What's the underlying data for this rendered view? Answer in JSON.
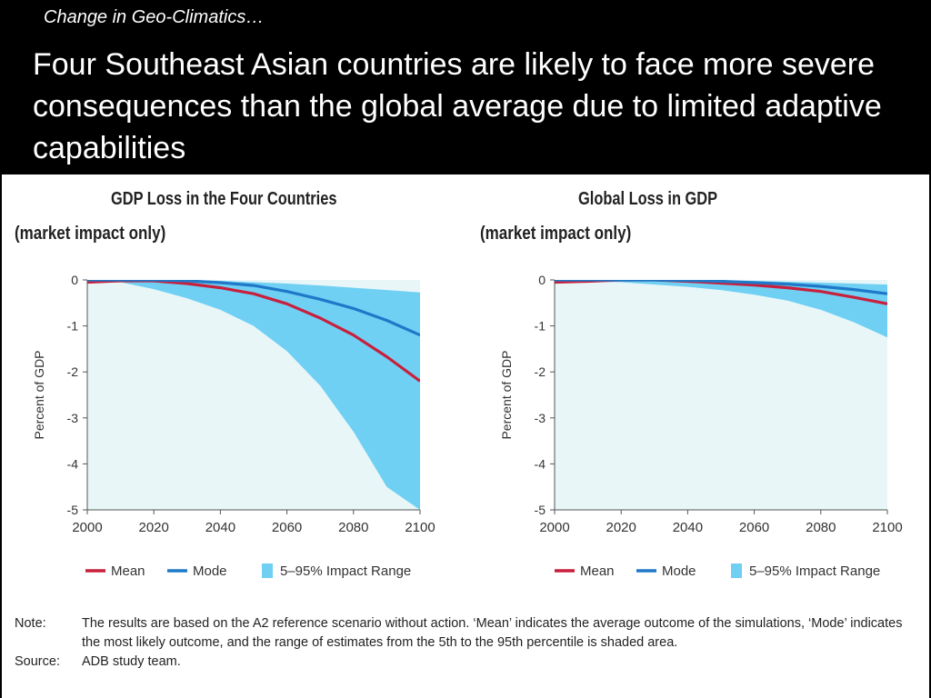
{
  "header": {
    "kicker": "Change in Geo-Climatics…",
    "headline": "Four Southeast Asian countries are likely to face more severe consequences than the global average due to limited adaptive capabilities"
  },
  "colors": {
    "mean": "#c8203c",
    "mode": "#1f78c8",
    "range": "#6fd0f4",
    "plot_bg": "#e8f6f8"
  },
  "chart_data": [
    {
      "type": "area",
      "title": "GDP Loss in the Four Countries",
      "subtitle": "(market impact only)",
      "ylabel": "Percent of GDP",
      "xlabel": "",
      "xlim": [
        2000,
        2100
      ],
      "ylim": [
        -5,
        0
      ],
      "xticks": [
        "2000",
        "2020",
        "2040",
        "2060",
        "2080",
        "2100"
      ],
      "yticks": [
        "0",
        "-1",
        "-2",
        "-3",
        "-4",
        "-5"
      ],
      "grid": false,
      "legend_position": "bottom",
      "x": [
        2000,
        2010,
        2020,
        2030,
        2040,
        2050,
        2060,
        2070,
        2080,
        2090,
        2100
      ],
      "series": [
        {
          "name": "Mean",
          "kind": "line",
          "values": [
            -0.05,
            -0.02,
            -0.02,
            -0.08,
            -0.17,
            -0.3,
            -0.52,
            -0.83,
            -1.2,
            -1.67,
            -2.2
          ]
        },
        {
          "name": "Mode",
          "kind": "line",
          "values": [
            0,
            0,
            0,
            -0.02,
            -0.06,
            -0.12,
            -0.25,
            -0.42,
            -0.62,
            -0.88,
            -1.2
          ]
        },
        {
          "name": "5–95% Impact Range",
          "kind": "band",
          "upper": [
            0,
            0,
            0,
            0,
            -0.02,
            -0.05,
            -0.08,
            -0.12,
            -0.17,
            -0.22,
            -0.27
          ],
          "lower": [
            -0.05,
            -0.05,
            -0.2,
            -0.4,
            -0.65,
            -1.0,
            -1.55,
            -2.3,
            -3.3,
            -4.5,
            -5.0
          ]
        }
      ]
    },
    {
      "type": "area",
      "title": "Global Loss in GDP",
      "subtitle": "(market impact only)",
      "ylabel": "Percent of GDP",
      "xlabel": "",
      "xlim": [
        2000,
        2100
      ],
      "ylim": [
        -5,
        0
      ],
      "xticks": [
        "2000",
        "2020",
        "2040",
        "2060",
        "2080",
        "2100"
      ],
      "yticks": [
        "0",
        "-1",
        "-2",
        "-3",
        "-4",
        "-5"
      ],
      "grid": false,
      "legend_position": "bottom",
      "x": [
        2000,
        2010,
        2020,
        2030,
        2040,
        2050,
        2060,
        2070,
        2080,
        2090,
        2100
      ],
      "series": [
        {
          "name": "Mean",
          "kind": "line",
          "values": [
            -0.05,
            -0.03,
            0,
            0,
            -0.03,
            -0.07,
            -0.11,
            -0.17,
            -0.25,
            -0.38,
            -0.52
          ]
        },
        {
          "name": "Mode",
          "kind": "line",
          "values": [
            0,
            0,
            0,
            0,
            -0.01,
            -0.03,
            -0.06,
            -0.09,
            -0.14,
            -0.21,
            -0.3
          ]
        },
        {
          "name": "5–95% Impact Range",
          "kind": "band",
          "upper": [
            0,
            0,
            0,
            0,
            0,
            -0.01,
            -0.02,
            -0.04,
            -0.06,
            -0.08,
            -0.1
          ],
          "lower": [
            -0.05,
            -0.03,
            -0.05,
            -0.1,
            -0.15,
            -0.22,
            -0.32,
            -0.45,
            -0.65,
            -0.92,
            -1.25
          ]
        }
      ]
    }
  ],
  "notes": {
    "note_label": "Note:",
    "note_text": "The results are based on the A2 reference scenario without action. ‘Mean’ indicates the average outcome of the simulations, ‘Mode’ indicates the most likely outcome, and the range of estimates from the 5th to the 95th percentile is shaded area.",
    "source_label": "Source:",
    "source_text": "ADB study team."
  }
}
